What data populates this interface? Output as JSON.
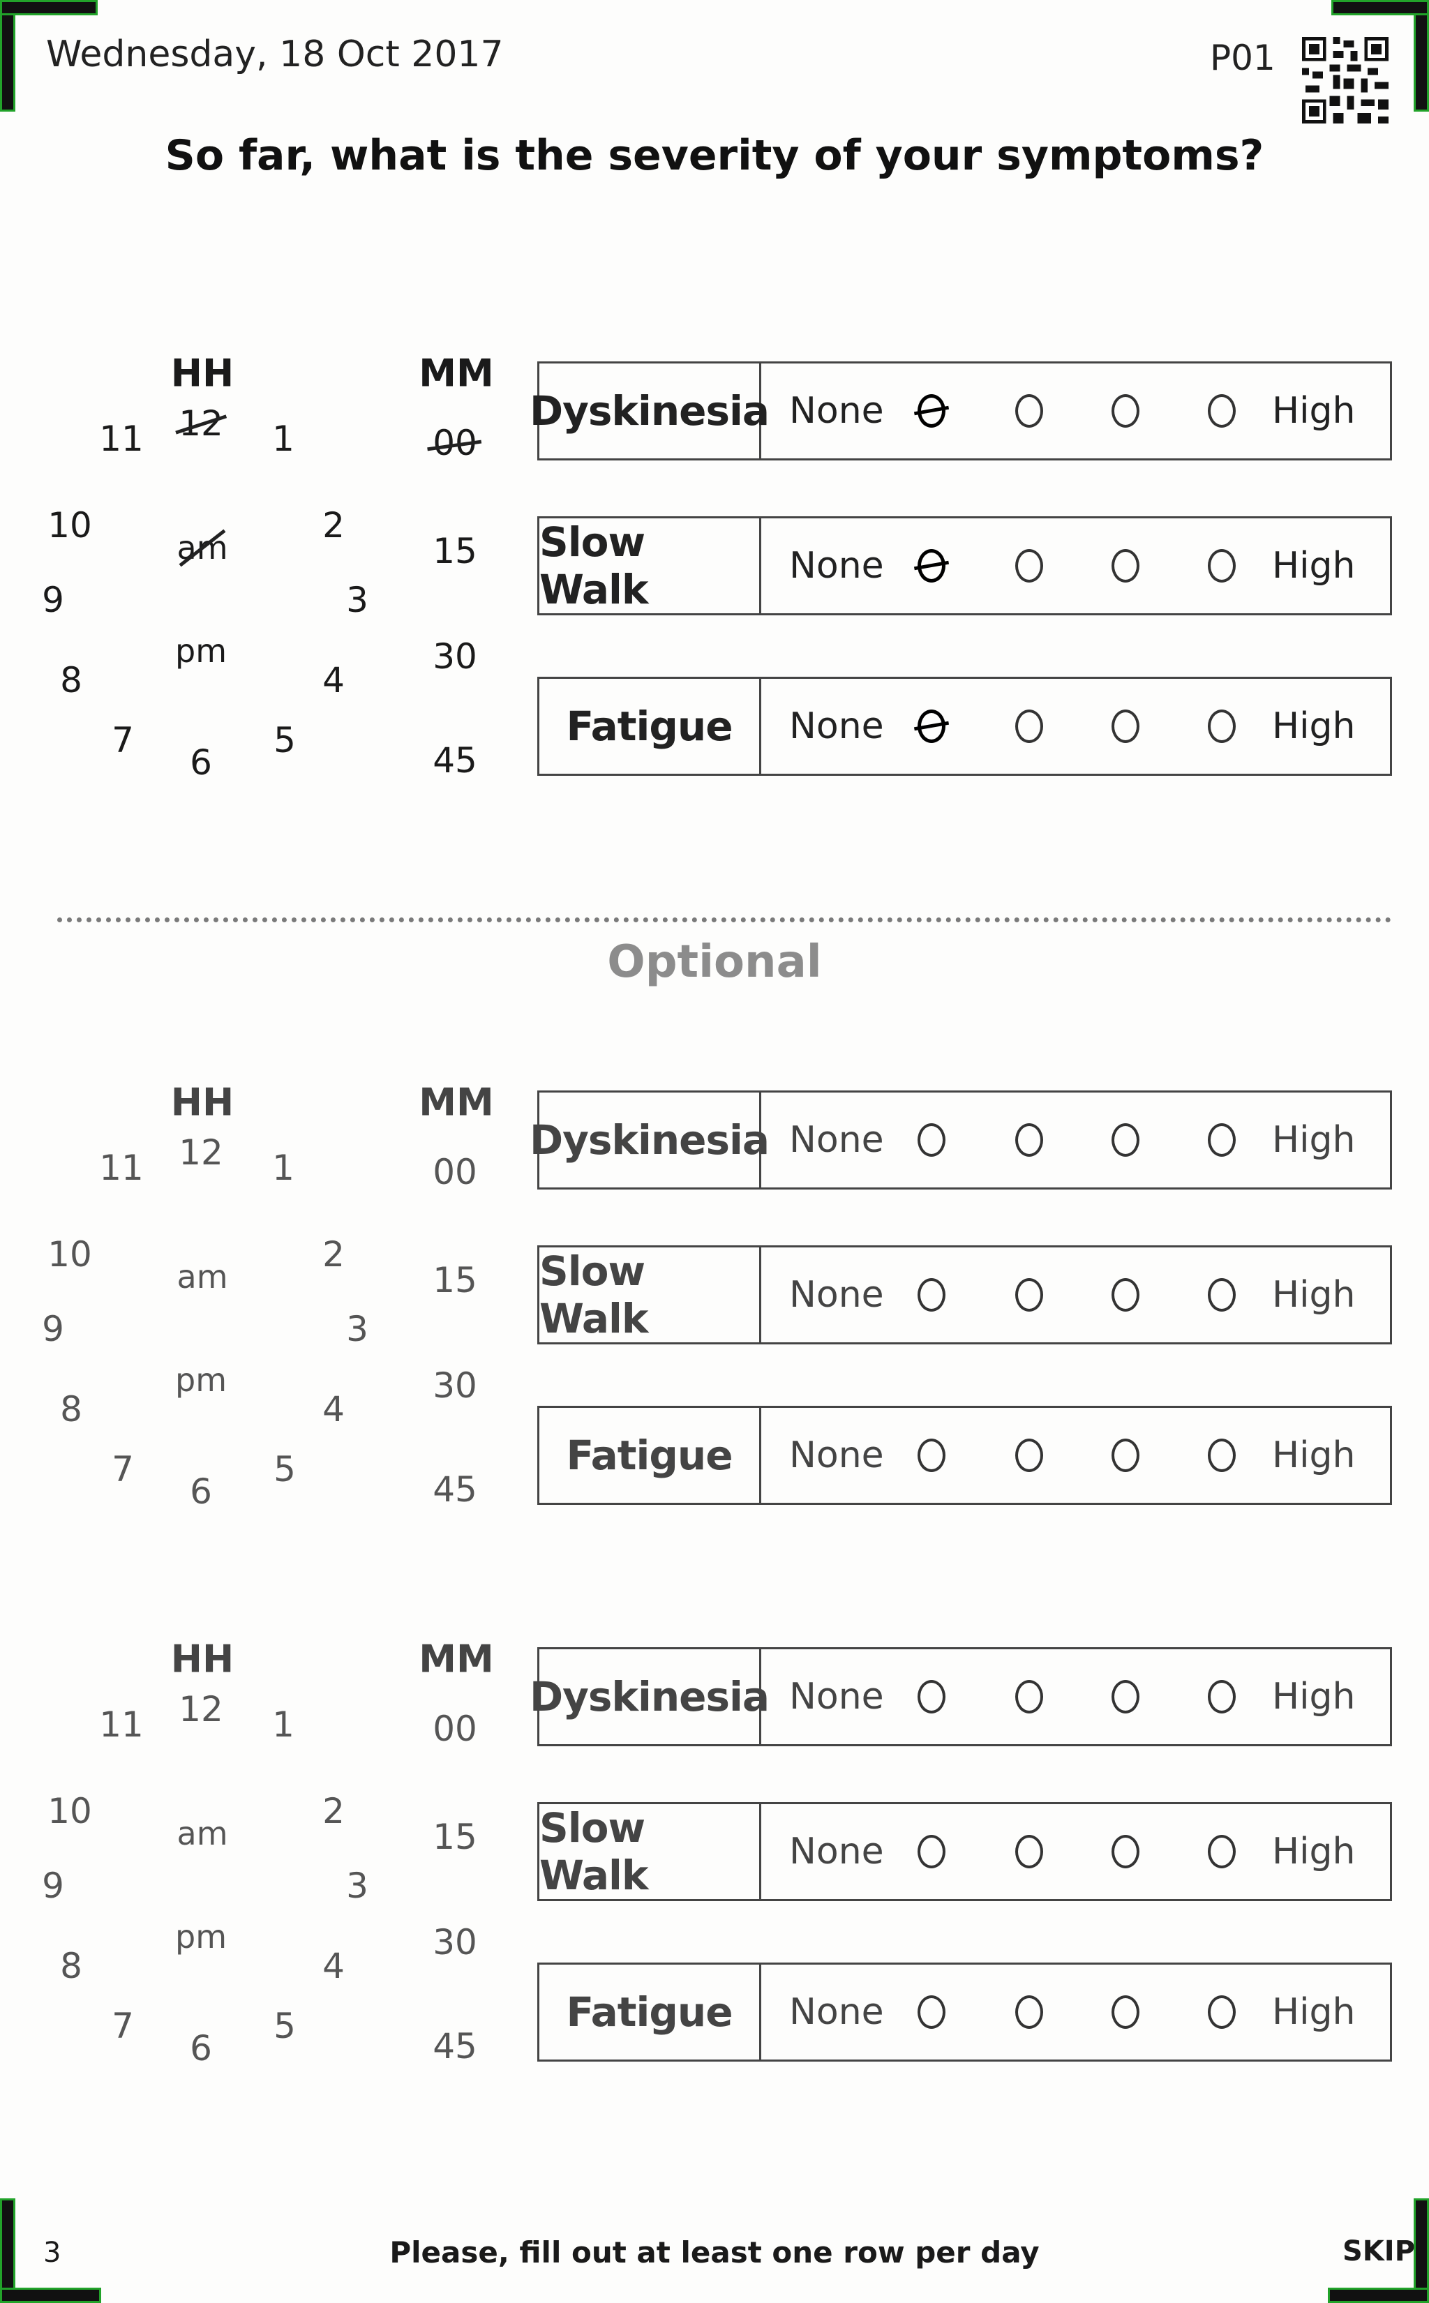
{
  "header": {
    "date": "Wednesday, 18 Oct 2017",
    "page_code": "P01"
  },
  "question": "So far, what is the severity of your symptoms?",
  "time_picker": {
    "hh_label": "HH",
    "mm_label": "MM",
    "hours": [
      "12",
      "1",
      "2",
      "3",
      "4",
      "5",
      "6",
      "7",
      "8",
      "9",
      "10",
      "11"
    ],
    "am": "am",
    "pm": "pm",
    "minutes": [
      "00",
      "15",
      "30",
      "45"
    ]
  },
  "scale": {
    "low_label": "None",
    "high_label": "High"
  },
  "sections": [
    {
      "selected_hour": "12",
      "selected_minute": "00",
      "selected_period": "am",
      "ratings": [
        {
          "label": "Dyskinesia",
          "selected": 1
        },
        {
          "label": "Slow Walk",
          "selected": 1
        },
        {
          "label": "Fatigue",
          "selected": 1
        }
      ]
    },
    {
      "ratings": [
        {
          "label": "Dyskinesia",
          "selected": 0
        },
        {
          "label": "Slow Walk",
          "selected": 0
        },
        {
          "label": "Fatigue",
          "selected": 0
        }
      ]
    },
    {
      "ratings": [
        {
          "label": "Dyskinesia",
          "selected": 0
        },
        {
          "label": "Slow Walk",
          "selected": 0
        },
        {
          "label": "Fatigue",
          "selected": 0
        }
      ]
    }
  ],
  "optional_label": "Optional",
  "footer": {
    "page_number": "3",
    "note": "Please, fill out at least one row per day",
    "skip": "SKIP"
  }
}
